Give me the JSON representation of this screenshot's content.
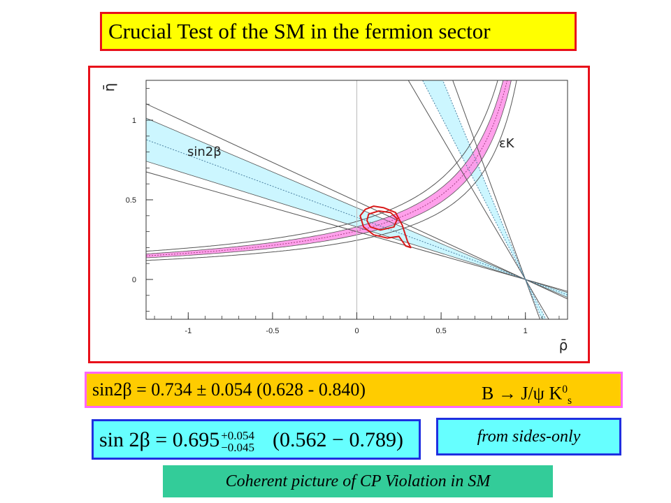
{
  "title": "Crucial Test of the SM in the fermion sector",
  "chart_data": {
    "type": "line",
    "x_axis_label": "ρ̄",
    "y_axis_label": "η̄",
    "xlim": [
      -1.25,
      1.25
    ],
    "ylim": [
      -0.25,
      1.25
    ],
    "x_ticks": [
      -1,
      -0.5,
      0,
      0.5,
      1
    ],
    "x_tick_labels": [
      "-1",
      "-0.5",
      "0",
      "0.5",
      "1"
    ],
    "y_ticks": [
      0,
      0.5,
      1
    ],
    "y_tick_labels": [
      "0",
      "0.5",
      "1"
    ],
    "band_labels": {
      "sin2beta": "sin2β",
      "epsK": "εK"
    },
    "colors": {
      "sin2beta_band": "#ccf6ff",
      "epsK_band": "#ff8fe8",
      "contour": "#d81a1a",
      "lines": "#555555"
    },
    "sin2beta_band": {
      "apex": [
        1,
        0
      ],
      "inner_slopes": [
        -0.33,
        -0.45
      ],
      "outer_slopes": [
        -0.3,
        -0.49
      ],
      "dotted_slope": -0.39
    },
    "epsK_band": {
      "form": "eta = k / (1.18 - rho)",
      "inner_k": [
        0.33,
        0.39
      ],
      "outer_k": [
        0.29,
        0.43
      ],
      "dotted_k": 0.36
    },
    "steep_band": {
      "apex": [
        1,
        0
      ],
      "inner_slopes": [
        -2.55,
        -2.05
      ],
      "outer_slopes": [
        -2.9,
        -1.8
      ]
    },
    "contours": [
      {
        "level": "inner",
        "center": [
          0.13,
          0.37
        ]
      },
      {
        "level": "outer",
        "center": [
          0.12,
          0.4
        ]
      }
    ]
  },
  "result": {
    "value_text": "sin2β = 0.734 ± 0.054 (0.628 - 0.840)",
    "process_text": "B → J/ψ K",
    "process_sup": "0",
    "process_sub": "s"
  },
  "formula": {
    "lhs": "sin 2β = 0.695",
    "sup": "+0.054",
    "sub": "−0.045",
    "range": "(0.562 − 0.789)"
  },
  "sides_only": "from sides-only",
  "coherent": "Coherent picture of  CP Violation in SM"
}
